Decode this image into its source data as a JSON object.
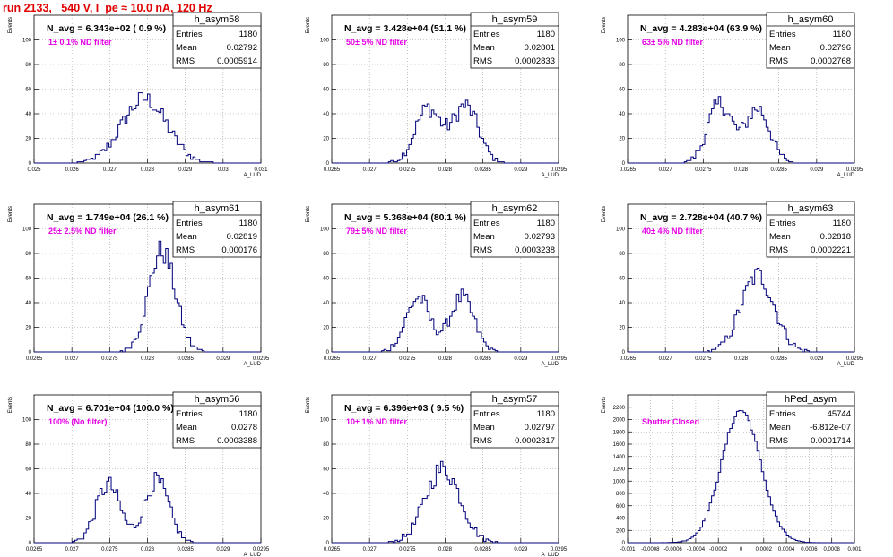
{
  "page": {
    "title": "run 2133,   540 V, I_pe ≈ 10.0 nA, 120 Hz"
  },
  "stats_labels": {
    "entries": "Entries",
    "mean": "Mean",
    "rms": "RMS"
  },
  "colors": {
    "hist": "#00007a",
    "annotation": "#e600e6",
    "title": "#e00000",
    "grid": "#9a9a9a"
  },
  "chart_data": [
    {
      "type": "histogram",
      "name": "h_asym58",
      "nav": "N_avg = 6.343e+02 ( 0.9 %)",
      "note": "1± 0.1% ND filter",
      "entries": "1180",
      "mean": "0.02792",
      "rms": "0.0005914",
      "ylabel": "Events",
      "xlabel": "A_LUD",
      "xlim": [
        0.025,
        0.031
      ],
      "ylim": [
        0,
        120
      ],
      "xticks": [
        "0.025",
        "0.026",
        "0.027",
        "0.028",
        "0.029",
        "0.03",
        "0.031"
      ],
      "xtick_vals": [
        0.025,
        0.026,
        0.027,
        0.028,
        0.029,
        0.03,
        0.031
      ],
      "yticks": [
        "0",
        "20",
        "40",
        "60",
        "80",
        "100"
      ],
      "ytick_vals": [
        0,
        20,
        40,
        60,
        80,
        100
      ],
      "peaks": [
        {
          "mu": 0.02792,
          "sigma": 0.00059,
          "h": 52
        }
      ]
    },
    {
      "type": "histogram",
      "name": "h_asym59",
      "nav": "N_avg = 3.428e+04 (51.1 %)",
      "note": "50± 5% ND filter",
      "entries": "1180",
      "mean": "0.02801",
      "rms": "0.0002833",
      "ylabel": "Events",
      "xlabel": "A_LUD",
      "xlim": [
        0.0265,
        0.0295
      ],
      "ylim": [
        0,
        120
      ],
      "xticks": [
        "0.0265",
        "0.027",
        "0.0275",
        "0.028",
        "0.0285",
        "0.029",
        "0.0295"
      ],
      "xtick_vals": [
        0.0265,
        0.027,
        0.0275,
        0.028,
        0.0285,
        0.029,
        0.0295
      ],
      "yticks": [
        "0",
        "20",
        "40",
        "60",
        "80",
        "100"
      ],
      "ytick_vals": [
        0,
        20,
        40,
        60,
        80,
        100
      ],
      "peaks": [
        {
          "mu": 0.02777,
          "sigma": 0.00017,
          "h": 44
        },
        {
          "mu": 0.02827,
          "sigma": 0.00017,
          "h": 46
        }
      ]
    },
    {
      "type": "histogram",
      "name": "h_asym60",
      "nav": "N_avg = 4.283e+04 (63.9 %)",
      "note": "63± 5% ND filter",
      "entries": "1180",
      "mean": "0.02796",
      "rms": "0.0002768",
      "ylabel": "Events",
      "xlabel": "A_LUD",
      "xlim": [
        0.0265,
        0.0295
      ],
      "ylim": [
        0,
        120
      ],
      "xticks": [
        "0.0265",
        "0.027",
        "0.0275",
        "0.028",
        "0.0285",
        "0.029",
        "0.0295"
      ],
      "xtick_vals": [
        0.0265,
        0.027,
        0.0275,
        0.028,
        0.0285,
        0.029,
        0.0295
      ],
      "yticks": [
        "0",
        "20",
        "40",
        "60",
        "80",
        "100"
      ],
      "ytick_vals": [
        0,
        20,
        40,
        60,
        80,
        100
      ],
      "peaks": [
        {
          "mu": 0.02772,
          "sigma": 0.00016,
          "h": 48
        },
        {
          "mu": 0.02822,
          "sigma": 0.00016,
          "h": 44
        }
      ]
    },
    {
      "type": "histogram",
      "name": "h_asym61",
      "nav": "N_avg = 1.749e+04 (26.1 %)",
      "note": "25± 2.5% ND filter",
      "entries": "1180",
      "mean": "0.02819",
      "rms": "0.000176",
      "ylabel": "Events",
      "xlabel": "A_LUD",
      "xlim": [
        0.0265,
        0.0295
      ],
      "ylim": [
        0,
        120
      ],
      "xticks": [
        "0.0265",
        "0.027",
        "0.0275",
        "0.028",
        "0.0285",
        "0.029",
        "0.0295"
      ],
      "xtick_vals": [
        0.0265,
        0.027,
        0.0275,
        0.028,
        0.0285,
        0.029,
        0.0295
      ],
      "yticks": [
        "0",
        "20",
        "40",
        "60",
        "80",
        "100"
      ],
      "ytick_vals": [
        0,
        20,
        40,
        60,
        80,
        100
      ],
      "peaks": [
        {
          "mu": 0.02819,
          "sigma": 0.000176,
          "h": 82
        }
      ]
    },
    {
      "type": "histogram",
      "name": "h_asym62",
      "nav": "N_avg = 5.368e+04 (80.1 %)",
      "note": "79± 5% ND filter",
      "entries": "1180",
      "mean": "0.02793",
      "rms": "0.0003238",
      "ylabel": "Events",
      "xlabel": "A_LUD",
      "xlim": [
        0.0265,
        0.0295
      ],
      "ylim": [
        0,
        120
      ],
      "xticks": [
        "0.0265",
        "0.027",
        "0.0275",
        "0.028",
        "0.0285",
        "0.029",
        "0.0295"
      ],
      "xtick_vals": [
        0.0265,
        0.027,
        0.0275,
        0.028,
        0.0285,
        0.029,
        0.0295
      ],
      "yticks": [
        "0",
        "20",
        "40",
        "60",
        "80",
        "100"
      ],
      "ytick_vals": [
        0,
        20,
        40,
        60,
        80,
        100
      ],
      "peaks": [
        {
          "mu": 0.02764,
          "sigma": 0.00016,
          "h": 44
        },
        {
          "mu": 0.02822,
          "sigma": 0.00016,
          "h": 44
        }
      ]
    },
    {
      "type": "histogram",
      "name": "h_asym63",
      "nav": "N_avg = 2.728e+04 (40.7 %)",
      "note": "40± 4% ND filter",
      "entries": "1180",
      "mean": "0.02818",
      "rms": "0.0002221",
      "ylabel": "Events",
      "xlabel": "A_LUD",
      "xlim": [
        0.0265,
        0.0295
      ],
      "ylim": [
        0,
        120
      ],
      "xticks": [
        "0.0265",
        "0.027",
        "0.0275",
        "0.028",
        "0.0285",
        "0.029",
        "0.0295"
      ],
      "xtick_vals": [
        0.0265,
        0.027,
        0.0275,
        0.028,
        0.0285,
        0.029,
        0.0295
      ],
      "yticks": [
        "0",
        "20",
        "40",
        "60",
        "80",
        "100"
      ],
      "ytick_vals": [
        0,
        20,
        40,
        60,
        80,
        100
      ],
      "peaks": [
        {
          "mu": 0.02822,
          "sigma": 0.00022,
          "h": 62
        }
      ]
    },
    {
      "type": "histogram",
      "name": "h_asym56",
      "nav": "N_avg = 6.701e+04 (100.0 %)",
      "note": "100% (No filter)",
      "entries": "1180",
      "mean": "0.0278",
      "rms": "0.0003388",
      "ylabel": "Events",
      "xlabel": "A_LUD",
      "xlim": [
        0.0265,
        0.0295
      ],
      "ylim": [
        0,
        120
      ],
      "xticks": [
        "0.0265",
        "0.027",
        "0.0275",
        "0.028",
        "0.0285",
        "0.029",
        "0.0295"
      ],
      "xtick_vals": [
        0.0265,
        0.027,
        0.0275,
        0.028,
        0.0285,
        0.029,
        0.0295
      ],
      "yticks": [
        "0",
        "20",
        "40",
        "60",
        "80",
        "100"
      ],
      "ytick_vals": [
        0,
        20,
        40,
        60,
        80,
        100
      ],
      "peaks": [
        {
          "mu": 0.02748,
          "sigma": 0.00016,
          "h": 47
        },
        {
          "mu": 0.02812,
          "sigma": 0.00016,
          "h": 50
        }
      ]
    },
    {
      "type": "histogram",
      "name": "h_asym57",
      "nav": "N_avg = 6.396e+03 ( 9.5 %)",
      "note": "10± 1% ND filter",
      "entries": "1180",
      "mean": "0.02797",
      "rms": "0.0002317",
      "ylabel": "Events",
      "xlabel": "A_LUD",
      "xlim": [
        0.0265,
        0.0295
      ],
      "ylim": [
        0,
        120
      ],
      "xticks": [
        "0.0265",
        "0.027",
        "0.0275",
        "0.028",
        "0.0285",
        "0.029",
        "0.0295"
      ],
      "xtick_vals": [
        0.0265,
        0.027,
        0.0275,
        0.028,
        0.0285,
        0.029,
        0.0295
      ],
      "yticks": [
        "0",
        "20",
        "40",
        "60",
        "80",
        "100"
      ],
      "ytick_vals": [
        0,
        20,
        40,
        60,
        80,
        100
      ],
      "peaks": [
        {
          "mu": 0.02797,
          "sigma": 0.00023,
          "h": 60
        }
      ]
    },
    {
      "type": "histogram",
      "name": "hPed_asym",
      "nav": "",
      "note": "Shutter Closed",
      "entries": "45744",
      "mean": "-6.812e-07",
      "rms": "0.0001714",
      "ylabel": "Events",
      "xlabel": "",
      "xlim": [
        -0.001,
        0.001
      ],
      "ylim": [
        0,
        2400
      ],
      "xticks": [
        "-0.001",
        "-0.0008",
        "-0.0006",
        "-0.0004",
        "-0.0002",
        "0",
        "0.0002",
        "0.0004",
        "0.0006",
        "0.0008",
        "0.001"
      ],
      "xtick_vals": [
        -0.001,
        -0.0008,
        -0.0006,
        -0.0004,
        -0.0002,
        0,
        0.0002,
        0.0004,
        0.0006,
        0.0008,
        0.001
      ],
      "yticks": [
        "0",
        "200",
        "400",
        "600",
        "800",
        "1000",
        "1200",
        "1400",
        "1600",
        "1800",
        "2000",
        "2200"
      ],
      "ytick_vals": [
        0,
        200,
        400,
        600,
        800,
        1000,
        1200,
        1400,
        1600,
        1800,
        2000,
        2200
      ],
      "peaks": [
        {
          "mu": 0.0,
          "sigma": 0.0001714,
          "h": 2150
        }
      ]
    }
  ]
}
